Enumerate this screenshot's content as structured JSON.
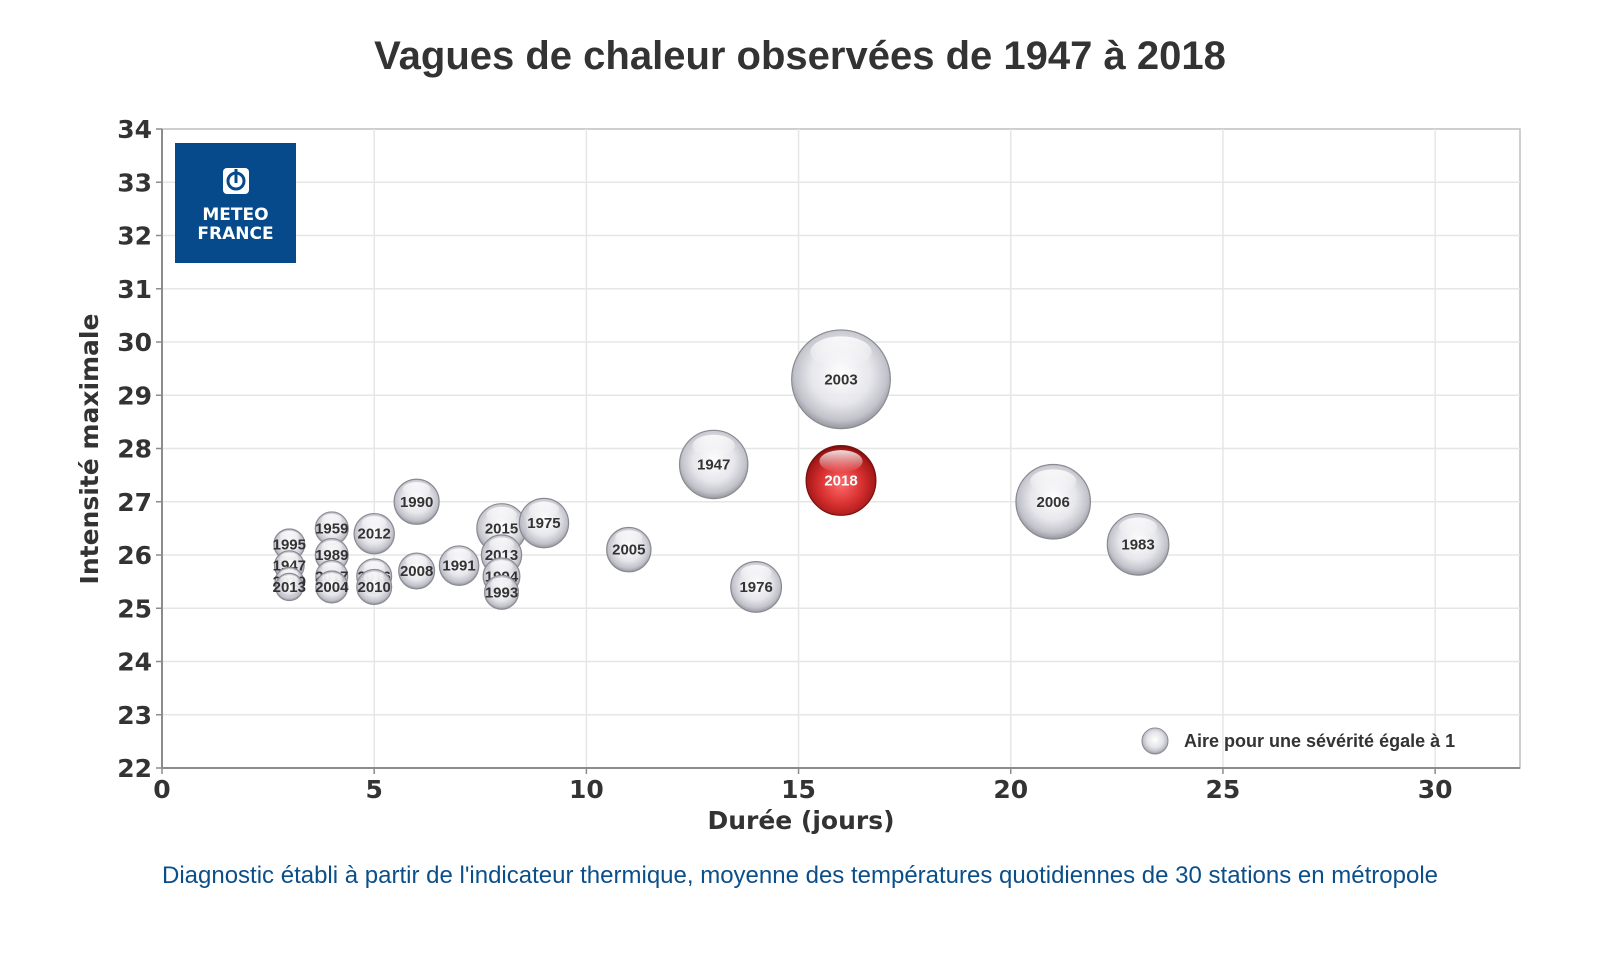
{
  "title": "Vagues de chaleur observées de 1947 à 2018",
  "footnote": "Diagnostic établi à partir de l'indicateur thermique, moyenne des températures quotidiennes de 30 stations en métropole",
  "logo": {
    "line1": "METEO",
    "line2": "FRANCE",
    "background": "#064a8b"
  },
  "colors": {
    "bubble_default": "#c9c9d2",
    "bubble_highlight": "#d02a2a",
    "grid": "#e6e6e6",
    "axis": "#8c8c8c"
  },
  "chart_data": {
    "type": "bubble",
    "xlabel": "Durée (jours)",
    "ylabel": "Intensité maximale",
    "xlim": [
      0,
      32
    ],
    "ylim": [
      22,
      34
    ],
    "xticks": [
      0,
      5,
      10,
      15,
      20,
      25,
      30
    ],
    "yticks": [
      22,
      23,
      24,
      25,
      26,
      27,
      28,
      29,
      30,
      31,
      32,
      33,
      34
    ],
    "grid": true,
    "legend": {
      "label": "Aire pour une sévérité égale à 1",
      "position": "bottom-right"
    },
    "points": [
      {
        "label": "1995",
        "x": 3,
        "y": 26.2,
        "size": 1.4
      },
      {
        "label": "1947",
        "x": 3,
        "y": 25.8,
        "size": 1.3
      },
      {
        "label": "2019",
        "x": 3,
        "y": 25.5,
        "size": 1.2
      },
      {
        "label": "2013",
        "x": 3,
        "y": 25.4,
        "size": 1.1
      },
      {
        "label": "1959",
        "x": 4,
        "y": 26.5,
        "size": 1.6
      },
      {
        "label": "1989",
        "x": 4,
        "y": 26.0,
        "size": 1.6
      },
      {
        "label": "2017",
        "x": 4,
        "y": 25.6,
        "size": 1.5
      },
      {
        "label": "2004",
        "x": 4,
        "y": 25.4,
        "size": 1.5
      },
      {
        "label": "2012",
        "x": 5,
        "y": 26.4,
        "size": 2.4
      },
      {
        "label": "2016",
        "x": 5,
        "y": 25.6,
        "size": 1.8
      },
      {
        "label": "2010",
        "x": 5,
        "y": 25.4,
        "size": 1.8
      },
      {
        "label": "1990",
        "x": 6,
        "y": 27.0,
        "size": 3.0
      },
      {
        "label": "2008",
        "x": 6,
        "y": 25.7,
        "size": 1.9
      },
      {
        "label": "1991",
        "x": 7,
        "y": 25.8,
        "size": 2.3
      },
      {
        "label": "2015",
        "x": 8,
        "y": 26.5,
        "size": 3.6
      },
      {
        "label": "2013",
        "x": 8,
        "y": 26.0,
        "size": 2.4
      },
      {
        "label": "1994",
        "x": 8,
        "y": 25.6,
        "size": 2.0
      },
      {
        "label": "1993",
        "x": 8,
        "y": 25.3,
        "size": 1.7
      },
      {
        "label": "1975",
        "x": 9,
        "y": 26.6,
        "size": 3.6
      },
      {
        "label": "2005",
        "x": 11,
        "y": 26.1,
        "size": 2.9
      },
      {
        "label": "1947",
        "x": 13,
        "y": 27.7,
        "size": 6.9
      },
      {
        "label": "1976",
        "x": 14,
        "y": 25.4,
        "size": 3.8
      },
      {
        "label": "2003",
        "x": 16,
        "y": 29.3,
        "size": 14.4
      },
      {
        "label": "2018",
        "x": 16,
        "y": 27.4,
        "size": 7.2,
        "highlight": true
      },
      {
        "label": "2006",
        "x": 21,
        "y": 27.0,
        "size": 8.2
      },
      {
        "label": "1983",
        "x": 23,
        "y": 26.2,
        "size": 5.6
      }
    ]
  }
}
